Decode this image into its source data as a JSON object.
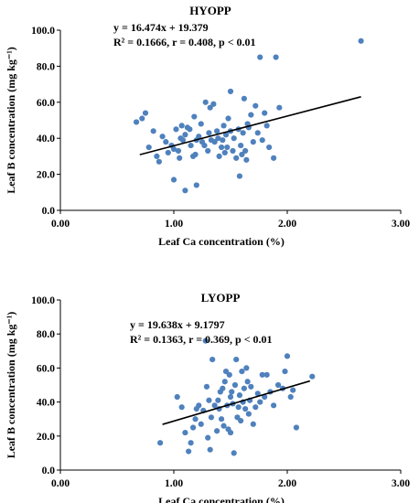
{
  "chart_data": [
    {
      "type": "scatter",
      "title": "HYOPP",
      "equation": "y = 16.474x + 19.379",
      "stats": "R² = 0.1666, r = 0.408, p < 0.01",
      "xlabel": "Leaf Ca concentration (%)",
      "ylabel": "Leaf B concentration (mg kg⁻¹)",
      "xlim": [
        0,
        3
      ],
      "ylim": [
        0,
        100
      ],
      "x_ticks": [
        "0.00",
        "1.00",
        "2.00",
        "3.00"
      ],
      "y_ticks": [
        "0.0",
        "20.0",
        "40.0",
        "60.0",
        "80.0",
        "100.0"
      ],
      "trendline": {
        "slope": 16.474,
        "intercept": 19.379,
        "x_range": [
          0.7,
          2.65
        ]
      },
      "points": [
        [
          0.67,
          49
        ],
        [
          0.72,
          51
        ],
        [
          0.75,
          54
        ],
        [
          0.78,
          35
        ],
        [
          0.82,
          44
        ],
        [
          0.85,
          30
        ],
        [
          0.87,
          27
        ],
        [
          0.9,
          41
        ],
        [
          0.93,
          38
        ],
        [
          0.95,
          32
        ],
        [
          0.98,
          36
        ],
        [
          1.0,
          17
        ],
        [
          1.0,
          34
        ],
        [
          1.02,
          45
        ],
        [
          1.04,
          33
        ],
        [
          1.05,
          29
        ],
        [
          1.06,
          40
        ],
        [
          1.07,
          47
        ],
        [
          1.08,
          39
        ],
        [
          1.1,
          11
        ],
        [
          1.1,
          42
        ],
        [
          1.12,
          46
        ],
        [
          1.14,
          45
        ],
        [
          1.15,
          36
        ],
        [
          1.17,
          30
        ],
        [
          1.18,
          52
        ],
        [
          1.19,
          31
        ],
        [
          1.2,
          14
        ],
        [
          1.2,
          39
        ],
        [
          1.22,
          41
        ],
        [
          1.24,
          48
        ],
        [
          1.25,
          38
        ],
        [
          1.27,
          36
        ],
        [
          1.28,
          60
        ],
        [
          1.3,
          33
        ],
        [
          1.31,
          43
        ],
        [
          1.32,
          57
        ],
        [
          1.33,
          39
        ],
        [
          1.35,
          59
        ],
        [
          1.36,
          38
        ],
        [
          1.38,
          44
        ],
        [
          1.39,
          40
        ],
        [
          1.4,
          30
        ],
        [
          1.42,
          35
        ],
        [
          1.43,
          39
        ],
        [
          1.44,
          47
        ],
        [
          1.45,
          32
        ],
        [
          1.46,
          42
        ],
        [
          1.47,
          35
        ],
        [
          1.48,
          51
        ],
        [
          1.5,
          66
        ],
        [
          1.5,
          44
        ],
        [
          1.52,
          33
        ],
        [
          1.53,
          40
        ],
        [
          1.55,
          29
        ],
        [
          1.57,
          45
        ],
        [
          1.58,
          19
        ],
        [
          1.59,
          36
        ],
        [
          1.6,
          31
        ],
        [
          1.61,
          43
        ],
        [
          1.62,
          62
        ],
        [
          1.63,
          33
        ],
        [
          1.64,
          28
        ],
        [
          1.65,
          48
        ],
        [
          1.66,
          46
        ],
        [
          1.68,
          53
        ],
        [
          1.7,
          38
        ],
        [
          1.72,
          58
        ],
        [
          1.74,
          43
        ],
        [
          1.76,
          85
        ],
        [
          1.78,
          39
        ],
        [
          1.8,
          54
        ],
        [
          1.82,
          47
        ],
        [
          1.84,
          35
        ],
        [
          1.88,
          29
        ],
        [
          1.9,
          85
        ],
        [
          1.93,
          57
        ],
        [
          2.65,
          94
        ]
      ]
    },
    {
      "type": "scatter",
      "title": "LYOPP",
      "equation": "y = 19.638x + 9.1797",
      "stats": "R² = 0.1363, r = 0.369, p < 0.01",
      "xlabel": "Leaf Ca concentration (%)",
      "ylabel": "Leaf B concentration (mg kg⁻¹)",
      "xlim": [
        0,
        3
      ],
      "ylim": [
        0,
        100
      ],
      "x_ticks": [
        "0.00",
        "1.00",
        "2.00",
        "3.00"
      ],
      "y_ticks": [
        "0.0",
        "20.0",
        "40.0",
        "60.0",
        "80.0",
        "100.0"
      ],
      "trendline": {
        "slope": 19.638,
        "intercept": 9.1797,
        "x_range": [
          0.9,
          2.2
        ]
      },
      "points": [
        [
          0.88,
          16
        ],
        [
          1.03,
          43
        ],
        [
          1.07,
          37
        ],
        [
          1.1,
          22
        ],
        [
          1.13,
          11
        ],
        [
          1.15,
          16
        ],
        [
          1.17,
          25
        ],
        [
          1.19,
          30
        ],
        [
          1.2,
          36
        ],
        [
          1.22,
          38
        ],
        [
          1.24,
          27
        ],
        [
          1.26,
          35
        ],
        [
          1.28,
          76
        ],
        [
          1.29,
          49
        ],
        [
          1.3,
          19
        ],
        [
          1.31,
          41
        ],
        [
          1.32,
          12
        ],
        [
          1.33,
          31
        ],
        [
          1.34,
          65
        ],
        [
          1.36,
          38
        ],
        [
          1.38,
          23
        ],
        [
          1.39,
          41
        ],
        [
          1.4,
          36
        ],
        [
          1.41,
          46
        ],
        [
          1.42,
          30
        ],
        [
          1.43,
          48
        ],
        [
          1.44,
          26
        ],
        [
          1.45,
          52
        ],
        [
          1.46,
          58
        ],
        [
          1.47,
          38
        ],
        [
          1.48,
          24
        ],
        [
          1.49,
          56
        ],
        [
          1.5,
          22
        ],
        [
          1.5,
          43
        ],
        [
          1.51,
          46
        ],
        [
          1.52,
          39
        ],
        [
          1.53,
          10
        ],
        [
          1.54,
          50
        ],
        [
          1.55,
          65
        ],
        [
          1.56,
          31
        ],
        [
          1.57,
          37
        ],
        [
          1.58,
          44
        ],
        [
          1.59,
          29
        ],
        [
          1.6,
          58
        ],
        [
          1.61,
          40
        ],
        [
          1.62,
          48
        ],
        [
          1.63,
          36
        ],
        [
          1.64,
          60
        ],
        [
          1.65,
          52
        ],
        [
          1.66,
          33
        ],
        [
          1.67,
          41
        ],
        [
          1.68,
          49
        ],
        [
          1.7,
          27
        ],
        [
          1.72,
          37
        ],
        [
          1.74,
          45
        ],
        [
          1.76,
          40
        ],
        [
          1.78,
          56
        ],
        [
          1.8,
          43
        ],
        [
          1.82,
          56
        ],
        [
          1.85,
          46
        ],
        [
          1.88,
          38
        ],
        [
          1.92,
          50
        ],
        [
          1.96,
          48
        ],
        [
          1.98,
          58
        ],
        [
          2.0,
          67
        ],
        [
          2.03,
          43
        ],
        [
          2.05,
          47
        ],
        [
          2.08,
          25
        ],
        [
          2.22,
          55
        ]
      ]
    }
  ]
}
